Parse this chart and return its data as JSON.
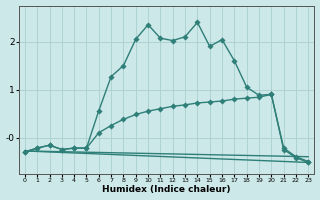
{
  "xlabel": "Humidex (Indice chaleur)",
  "bg_color": "#cce8e8",
  "grid_color": "#aacfcf",
  "line_color": "#2e7f78",
  "xlim": [
    -0.5,
    23.5
  ],
  "ylim": [
    -0.75,
    2.75
  ],
  "figsize": [
    3.2,
    2.0
  ],
  "dpi": 100,
  "line1_x": [
    0,
    1,
    2,
    3,
    4,
    5,
    6,
    7,
    8,
    9,
    10,
    11,
    12,
    13,
    14,
    15,
    16,
    17,
    18,
    19,
    20,
    21,
    22,
    23
  ],
  "line1_y": [
    -0.3,
    -0.22,
    -0.16,
    -0.25,
    -0.22,
    -0.22,
    0.56,
    1.27,
    1.5,
    2.05,
    2.35,
    2.07,
    2.02,
    2.1,
    2.4,
    1.9,
    2.04,
    1.6,
    1.05,
    0.88,
    0.9,
    -0.25,
    -0.42,
    -0.52
  ],
  "line2_x": [
    0,
    1,
    2,
    3,
    4,
    5,
    6,
    7,
    8,
    9,
    10,
    11,
    12,
    13,
    14,
    15,
    16,
    17,
    18,
    19,
    20,
    21,
    22,
    23
  ],
  "line2_y": [
    -0.3,
    -0.22,
    -0.16,
    -0.25,
    -0.22,
    -0.22,
    0.1,
    0.25,
    0.38,
    0.48,
    0.55,
    0.6,
    0.65,
    0.68,
    0.72,
    0.74,
    0.76,
    0.8,
    0.82,
    0.84,
    0.9,
    -0.22,
    -0.4,
    -0.5
  ],
  "line3_x": [
    0,
    23
  ],
  "line3_y": [
    -0.28,
    -0.4
  ],
  "line4_x": [
    0,
    23
  ],
  "line4_y": [
    -0.28,
    -0.52
  ]
}
